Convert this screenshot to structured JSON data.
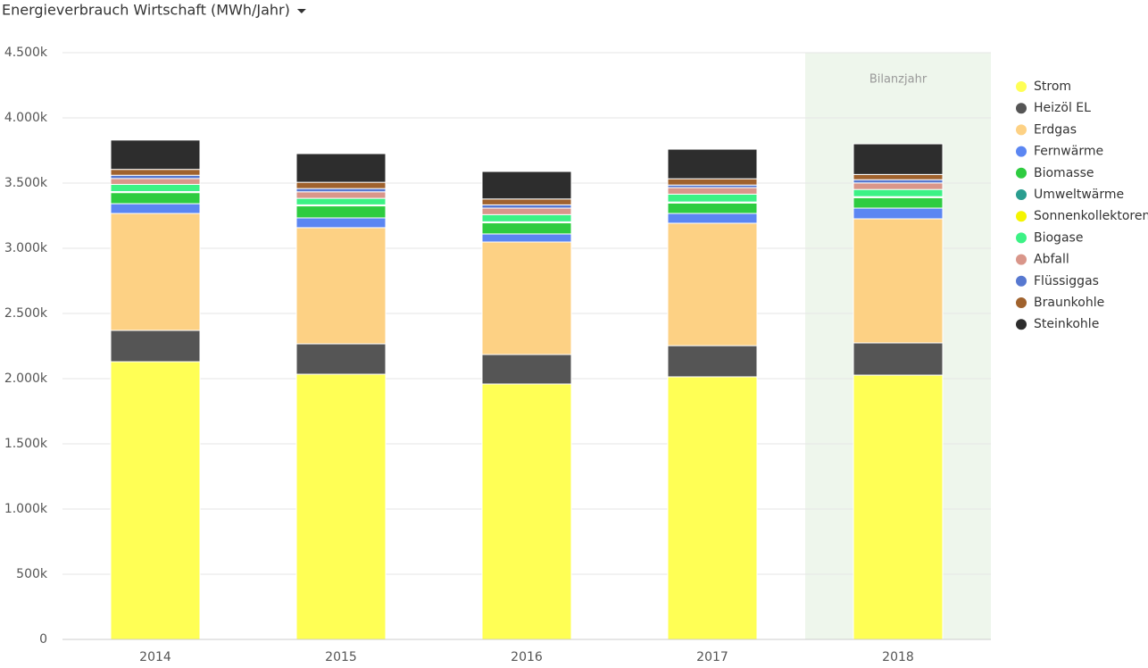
{
  "chart_data": {
    "type": "stacked-bar",
    "title": "Energieverbrauch Wirtschaft (MWh/Jahr)",
    "categories": [
      "2014",
      "2015",
      "2016",
      "2017",
      "2018"
    ],
    "series": [
      {
        "name": "Strom",
        "color": "#ffff55",
        "values": [
          2130,
          2034,
          1959,
          2014,
          2027
        ]
      },
      {
        "name": "Heizöl EL",
        "color": "#555555",
        "values": [
          240,
          233,
          226,
          239,
          247
        ]
      },
      {
        "name": "Erdgas",
        "color": "#fdd184",
        "values": [
          897,
          891,
          863,
          939,
          952
        ]
      },
      {
        "name": "Fernwärme",
        "color": "#5b86f2",
        "values": [
          75,
          75,
          62,
          75,
          82
        ]
      },
      {
        "name": "Biomasse",
        "color": "#2ecc40",
        "values": [
          85,
          92,
          85,
          80,
          80
        ]
      },
      {
        "name": "Umweltwärme",
        "color": "#2a9d8f",
        "values": [
          5,
          5,
          5,
          5,
          5
        ]
      },
      {
        "name": "Sonnenkollektoren",
        "color": "#f5f500",
        "values": [
          3,
          3,
          3,
          3,
          3
        ]
      },
      {
        "name": "Biogase",
        "color": "#3cf285",
        "values": [
          55,
          50,
          55,
          60,
          55
        ]
      },
      {
        "name": "Abfall",
        "color": "#d9968a",
        "values": [
          45,
          50,
          50,
          50,
          50
        ]
      },
      {
        "name": "Flüssiggas",
        "color": "#5778d0",
        "values": [
          25,
          25,
          25,
          20,
          25
        ]
      },
      {
        "name": "Braunkohle",
        "color": "#a0622d",
        "values": [
          45,
          48,
          45,
          48,
          40
        ]
      },
      {
        "name": "Steinkohle",
        "color": "#2d2d2d",
        "values": [
          225,
          220,
          211,
          227,
          235
        ]
      }
    ],
    "ylim": [
      0,
      4500
    ],
    "yticks": [
      0,
      {
        "value": 500,
        "label": "500k"
      },
      {
        "value": 1000,
        "label": "1.000k"
      },
      {
        "value": 1500,
        "label": "1.500k"
      },
      {
        "value": 2000,
        "label": "2.000k"
      },
      {
        "value": 2500,
        "label": "2.500k"
      },
      {
        "value": 3000,
        "label": "3.000k"
      },
      {
        "value": 3500,
        "label": "3.500k"
      },
      {
        "value": 4000,
        "label": "4.000k"
      },
      {
        "value": 4500,
        "label": "4.500k"
      }
    ],
    "grid": true,
    "legend": "right",
    "highlight": {
      "category": "2018",
      "label": "Bilanzjahr",
      "color": "#eef6ec"
    }
  }
}
